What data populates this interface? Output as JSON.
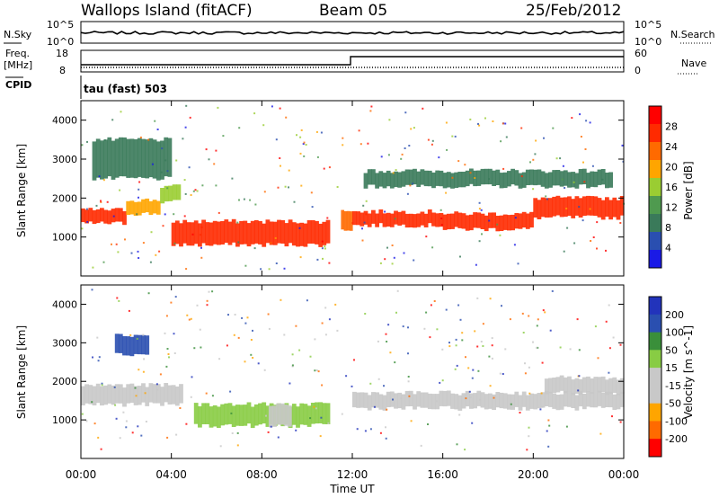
{
  "header": {
    "station": "Wallops Island (fitACF)",
    "beam": "Beam 05",
    "date": "25/Feb/2012"
  },
  "panels": {
    "nsky": {
      "label": "N.Sky",
      "ticks": [
        "10^5",
        "10^0"
      ],
      "right_ticks": [
        "10^5",
        "10^0"
      ],
      "right_label": "N.Search"
    },
    "freq": {
      "label1": "Freq.",
      "label2": "[MHz]",
      "ticks": [
        "18",
        "8"
      ],
      "right_ticks": [
        "60",
        "0"
      ],
      "right_label": "Nave"
    },
    "cpid": {
      "label": "CPID",
      "program": "tau (fast) 503"
    }
  },
  "x_axis": {
    "label": "Time UT",
    "ticks": [
      "00:00",
      "04:00",
      "08:00",
      "12:00",
      "16:00",
      "20:00",
      "00:00"
    ]
  },
  "colors": {
    "power_scale": [
      "#1a1ae6",
      "#2a4fb0",
      "#3a7a5a",
      "#4f9a4f",
      "#9acd32",
      "#ffa500",
      "#ff6a00",
      "#ff2a00",
      "#ff0000"
    ],
    "velocity_scale": [
      "#2233bb",
      "#2a4fb0",
      "#3a8f3a",
      "#88cc44",
      "#c8c8c8",
      "#c8c8c8",
      "#ffa500",
      "#ff6a00",
      "#ff0000"
    ]
  },
  "chart_data": [
    {
      "type": "heatmap",
      "title": "Power",
      "ylabel": "Slant Range [km]",
      "xlabel": "",
      "x_range_hours": [
        0,
        24
      ],
      "ylim": [
        0,
        4500
      ],
      "yticks": [
        1000,
        2000,
        3000,
        4000
      ],
      "colorbar": {
        "label": "Power [dB]",
        "ticks": [
          "28",
          "24",
          "20",
          "16",
          "12",
          "8",
          "4"
        ]
      },
      "bands": [
        {
          "t": [
            0.0,
            2.0
          ],
          "range": [
            1350,
            1700
          ],
          "value": 26
        },
        {
          "t": [
            2.0,
            3.5
          ],
          "range": [
            1600,
            1950
          ],
          "value": 20
        },
        {
          "t": [
            3.5,
            4.4
          ],
          "range": [
            1900,
            2300
          ],
          "value": 14
        },
        {
          "t": [
            4.0,
            11.0
          ],
          "range": [
            800,
            1400
          ],
          "value": 28
        },
        {
          "t": [
            11.5,
            12.0
          ],
          "range": [
            1200,
            1700
          ],
          "value": 24
        },
        {
          "t": [
            12.0,
            16.0
          ],
          "range": [
            1300,
            1650
          ],
          "value": 28
        },
        {
          "t": [
            16.0,
            20.0
          ],
          "range": [
            1200,
            1600
          ],
          "value": 28
        },
        {
          "t": [
            20.0,
            24.0
          ],
          "range": [
            1500,
            2000
          ],
          "value": 26
        },
        {
          "t": [
            12.5,
            23.5
          ],
          "range": [
            2300,
            2700
          ],
          "value": 8
        },
        {
          "t": [
            0.5,
            4.0
          ],
          "range": [
            2500,
            3500
          ],
          "value": 8
        }
      ]
    },
    {
      "type": "heatmap",
      "title": "Velocity",
      "ylabel": "Slant Range [km]",
      "xlabel": "Time UT",
      "x_range_hours": [
        0,
        24
      ],
      "ylim": [
        0,
        4500
      ],
      "yticks": [
        1000,
        2000,
        3000,
        4000
      ],
      "colorbar": {
        "label": "Velocity [m s^-1]",
        "ticks": [
          "200",
          "100",
          "50",
          "15",
          "-15",
          "-50",
          "-100",
          "-200"
        ]
      },
      "bands": [
        {
          "t": [
            1.5,
            3.0
          ],
          "range": [
            2700,
            3200
          ],
          "value": 200
        },
        {
          "t": [
            0.0,
            4.5
          ],
          "range": [
            1400,
            1900
          ],
          "value": 0
        },
        {
          "t": [
            5.0,
            11.0
          ],
          "range": [
            850,
            1400
          ],
          "value": 40
        },
        {
          "t": [
            8.3,
            9.3
          ],
          "range": [
            850,
            1400
          ],
          "value": -60
        },
        {
          "t": [
            12.0,
            24.0
          ],
          "range": [
            1300,
            1700
          ],
          "value": 0
        },
        {
          "t": [
            20.5,
            24.0
          ],
          "range": [
            1700,
            2100
          ],
          "value": 0
        }
      ]
    }
  ]
}
